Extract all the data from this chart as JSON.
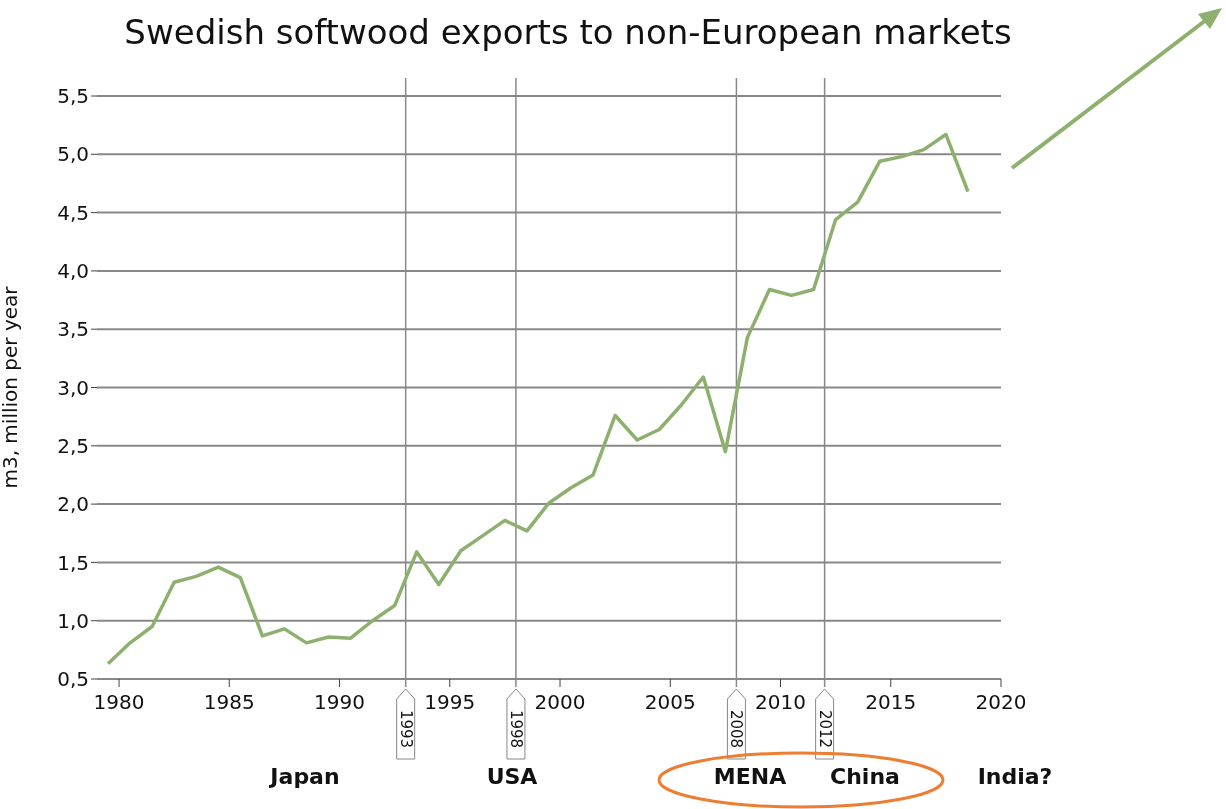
{
  "chart_data": {
    "type": "line",
    "title": "Swedish softwood exports to non-European markets",
    "ylabel": "m3, million per year",
    "x": [
      1979.5,
      1980.5,
      1981.5,
      1982.5,
      1983.5,
      1984.5,
      1985.5,
      1986.5,
      1987.5,
      1988.5,
      1989.5,
      1990.5,
      1991.5,
      1992.5,
      1993.5,
      1994.5,
      1995.5,
      1996.5,
      1997.5,
      1998.5,
      1999.5,
      2000.5,
      2001.5,
      2002.5,
      2003.5,
      2004.5,
      2005.5,
      2006.5,
      2007.5,
      2008.5,
      2009.5,
      2010.5,
      2011.5,
      2012.5,
      2013.5,
      2014.5,
      2015.5,
      2016.5,
      2017.5,
      2018.5
    ],
    "series": [
      {
        "color": "#8db06e",
        "values": [
          0.63,
          0.81,
          0.95,
          1.33,
          1.38,
          1.46,
          1.37,
          0.87,
          0.93,
          0.81,
          0.86,
          0.85,
          1.0,
          1.13,
          1.59,
          1.31,
          1.6,
          1.73,
          1.86,
          1.77,
          2.01,
          2.14,
          2.25,
          2.76,
          2.55,
          2.64,
          2.85,
          3.09,
          2.45,
          3.43,
          3.84,
          3.79,
          3.84,
          4.44,
          4.59,
          4.94,
          4.98,
          5.04,
          5.17,
          4.68
        ]
      }
    ],
    "xlim": [
      1979,
      2020
    ],
    "xticks": [
      1980,
      1985,
      1990,
      1995,
      2000,
      2005,
      2010,
      2015,
      2020
    ],
    "ylim": [
      0.5,
      5.5
    ],
    "yticks": [
      {
        "value": 0.5,
        "label": "0,5"
      },
      {
        "value": 1,
        "label": "1,0"
      },
      {
        "value": 1.5,
        "label": "1,5"
      },
      {
        "value": 2,
        "label": "2,0"
      },
      {
        "value": 2.5,
        "label": "2,5"
      },
      {
        "value": 3,
        "label": "3,0"
      },
      {
        "value": 3.5,
        "label": "3,5"
      },
      {
        "value": 4,
        "label": "4,0"
      },
      {
        "value": 4.5,
        "label": "4,5"
      },
      {
        "value": 5,
        "label": "5,0"
      },
      {
        "value": 5.5,
        "label": "5,5"
      }
    ],
    "grid": "y",
    "marker": "none",
    "line_style": "solid",
    "ref_lines": [
      {
        "axis": "x",
        "value": 1993,
        "label": "1993",
        "color": "#888888"
      },
      {
        "axis": "x",
        "value": 1998,
        "label": "1998",
        "color": "#888888"
      },
      {
        "axis": "x",
        "value": 2008,
        "label": "2008",
        "color": "#888888"
      },
      {
        "axis": "x",
        "value": 2012,
        "label": "2012",
        "color": "#888888"
      }
    ],
    "annotations": [
      "Japan",
      "USA",
      "MENA",
      "China",
      "India?"
    ]
  }
}
